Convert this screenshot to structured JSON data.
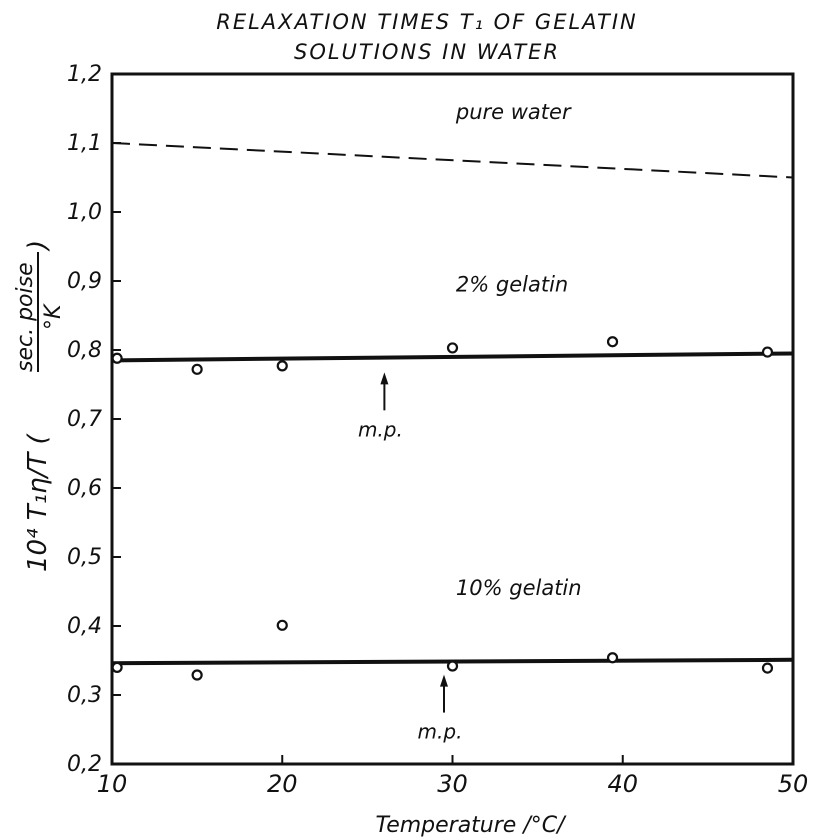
{
  "chart_data": {
    "type": "scatter",
    "title_line1": "RELAXATION TIMES T₁ OF GELATIN",
    "title_line2": "SOLUTIONS IN WATER",
    "xlabel": "Temperature /°C/",
    "ylabel_prefix": "10⁴ T₁η/T (",
    "ylabel_num": "sec. poise",
    "ylabel_den": "°K",
    "ylabel_suffix": ")",
    "xlim": [
      10,
      50
    ],
    "ylim": [
      0.2,
      1.2
    ],
    "x_ticks": [
      "10",
      "20",
      "30",
      "40",
      "50"
    ],
    "y_ticks": [
      "0,2",
      "0,3",
      "0,4",
      "0,5",
      "0,6",
      "0,7",
      "0,8",
      "0,9",
      "1,0",
      "1,1",
      "1,2"
    ],
    "grid": false,
    "series": [
      {
        "name": "pure water",
        "style": "dashed",
        "line": [
          [
            10,
            1.1
          ],
          [
            50,
            1.05
          ]
        ],
        "points": []
      },
      {
        "name": "2% gelatin",
        "style": "solid",
        "line": [
          [
            10,
            0.785
          ],
          [
            50,
            0.795
          ]
        ],
        "points": [
          [
            10.3,
            0.788
          ],
          [
            15,
            0.772
          ],
          [
            20,
            0.777
          ],
          [
            30,
            0.803
          ],
          [
            39.4,
            0.812
          ],
          [
            48.5,
            0.797
          ]
        ]
      },
      {
        "name": "10% gelatin",
        "style": "solid",
        "line": [
          [
            10,
            0.346
          ],
          [
            50,
            0.351
          ]
        ],
        "points": [
          [
            10.3,
            0.34
          ],
          [
            15,
            0.329
          ],
          [
            20,
            0.401
          ],
          [
            30,
            0.342
          ],
          [
            39.4,
            0.354
          ],
          [
            48.5,
            0.339
          ]
        ]
      }
    ],
    "annotations": [
      {
        "text": "m.p.",
        "x": 26,
        "y": 0.785
      },
      {
        "text": "m.p.",
        "x": 29.5,
        "y": 0.347
      }
    ]
  }
}
